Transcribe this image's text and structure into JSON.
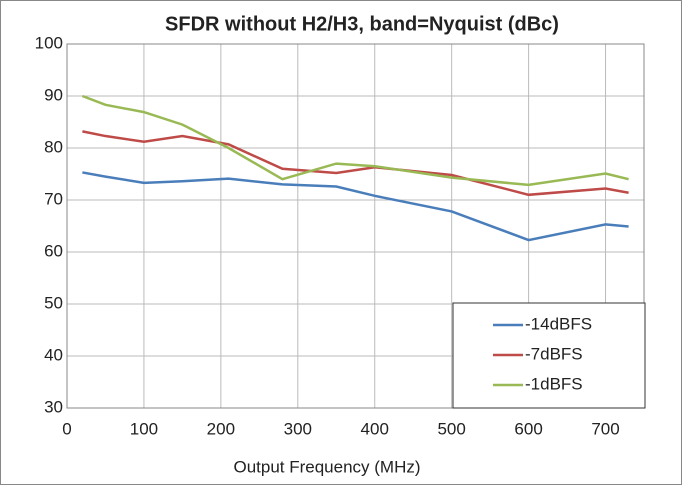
{
  "chart_data": {
    "type": "line",
    "title": "SFDR without H2/H3, band=Nyquist  (dBc)",
    "x_label": "Output Frequency (MHz)",
    "x": [
      20,
      50,
      100,
      150,
      210,
      280,
      350,
      400,
      500,
      600,
      700,
      730
    ],
    "series": [
      {
        "name": "-14dBFS",
        "color": "#4a7ebb",
        "values": [
          75.3,
          74.5,
          73.3,
          73.6,
          74.1,
          73.0,
          72.6,
          70.8,
          67.8,
          62.3,
          65.3,
          64.9
        ]
      },
      {
        "name": "-7dBFS",
        "color": "#be4b48",
        "values": [
          83.2,
          82.3,
          81.2,
          82.3,
          80.7,
          76.0,
          75.2,
          76.3,
          74.8,
          71.0,
          72.2,
          71.4
        ]
      },
      {
        "name": "-1dBFS",
        "color": "#98b954",
        "values": [
          90,
          88.3,
          86.9,
          84.5,
          80,
          74.0,
          77.0,
          76.5,
          74.3,
          72.9,
          75.1,
          74.0
        ]
      }
    ],
    "xlim": [
      0,
      750
    ],
    "xticks": [
      0,
      100,
      200,
      300,
      400,
      500,
      600,
      700
    ],
    "ylim": [
      30,
      100
    ],
    "yticks": [
      30,
      40,
      50,
      60,
      70,
      80,
      90,
      100
    ],
    "grid": true,
    "legend": "lower right"
  }
}
